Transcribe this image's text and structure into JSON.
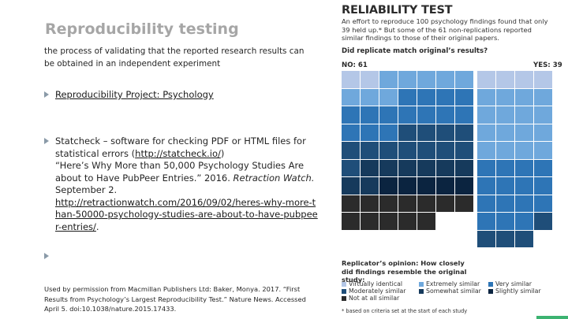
{
  "slide": {
    "title": "Reproducibility testing",
    "definition": "the process of validating that the reported research results can be obtained in an independent experiment",
    "bullet1": {
      "link": " Reproducibility Project: Psychology"
    },
    "bullet2": {
      "text_before": "Statcheck – software for checking PDF or HTML files for statistical errors (",
      "link1": "http://statcheck.io/",
      "text_after_link1": ")",
      "quote": " “Here’s Why More than 50,000 Psychology Studies Are about to Have PubPeer Entries.” 2016.",
      "source": " Retraction Watch.",
      "date": " September 2.",
      "link2": "http://retractionwatch.com/2016/09/02/heres-why-more-than-50000-psychology-studies-are-about-to-have-pubpeer-entries/",
      "end": "."
    },
    "credit": "Used by permission from Macmillan Publishers Ltd: Baker, Monya. 2017. “First Results from Psychology’s Largest Reproducibility Test.” Nature News. Accessed April 5. doi:10.1038/nature.2015.17433."
  },
  "infographic": {
    "title": "RELIABILITY TEST",
    "intro": "An effort to reproduce 100 psychology findings found that only 39 held up.* But some of the 61 non-replications reported similar findings to those of their original papers.",
    "question": "Did replicate match original’s results?",
    "no_label": "NO: 61",
    "yes_label": "YES: 39",
    "opinion_heading": "Replicator’s opinion: How closely did findings resemble the original study:",
    "legend": [
      {
        "label": "Virtually identical",
        "color": "#b4c7e7"
      },
      {
        "label": "Extremely similar",
        "color": "#6fa8dc"
      },
      {
        "label": "Very similar",
        "color": "#2e75b6"
      },
      {
        "label": "Moderately similar",
        "color": "#1f4e79"
      },
      {
        "label": "Somewhat similar",
        "color": "#163a5c"
      },
      {
        "label": "Slightly similar",
        "color": "#0b2440"
      },
      {
        "label": "Not at all similar",
        "color": "#2b2b2b"
      }
    ],
    "footnote": "* based on criteria set at the start of each study",
    "colors": {
      "virtually_identical": "#b4c7e7",
      "extremely_similar": "#6fa8dc",
      "very_similar": "#2e75b6",
      "moderately_similar": "#1f4e79",
      "somewhat_similar": "#163a5c",
      "slightly_similar": "#0b2440",
      "not_similar": "#2b2b2b"
    },
    "no_counts": {
      "virtually_identical": 2,
      "extremely_similar": 8,
      "very_similar": 14,
      "moderately_similar": 12,
      "somewhat_similar": 8,
      "slightly_similar": 5,
      "not_similar": 12
    },
    "yes_counts": {
      "virtually_identical": 4,
      "extremely_similar": 16,
      "very_similar": 15,
      "moderately_similar": 4
    }
  }
}
